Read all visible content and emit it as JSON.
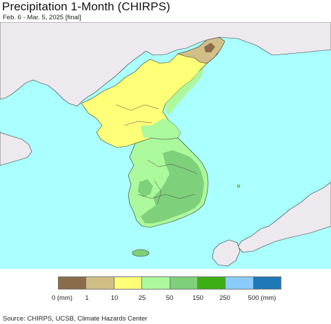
{
  "title": "Precipitation 1-Month (CHIRPS)",
  "subtitle": "Feb. 6 - Mar. 5, 2025 [final]",
  "map": {
    "ocean_color": "#aaffff",
    "foreign_land_color": "#ede9ee",
    "border_color": "#111111"
  },
  "legend": {
    "colors": [
      "#8b6c4a",
      "#d2bf88",
      "#ffff78",
      "#abf99c",
      "#7fd07b",
      "#3eae15",
      "#8acdfd",
      "#1f78b8"
    ],
    "labels": [
      "0 (mm)",
      "1",
      "10",
      "25",
      "50",
      "150",
      "250",
      "500 (mm)"
    ]
  },
  "source": "Source: CHIRPS, UCSB, Climate Hazards Center"
}
